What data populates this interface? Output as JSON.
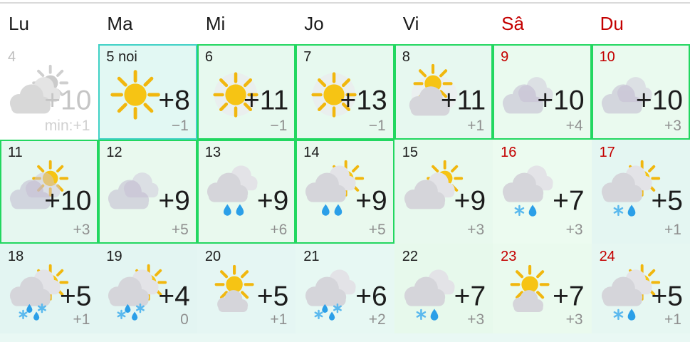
{
  "colors": {
    "page_bg": "#ffffff",
    "weekend_red": "#c40000",
    "text_dark": "#1c1c1c",
    "low_gray": "#8f8f8f",
    "past_gray": "#c5c5c5",
    "green_border": "#22d760",
    "teal_border": "#3fd1c5",
    "top_divider": "#dadada",
    "sun_yellow": "#f6c414",
    "rain_blue": "#2b9fe8",
    "snow_blue": "#5bb9ee"
  },
  "header": {
    "days": [
      {
        "label": "Lu",
        "weekend": false
      },
      {
        "label": "Ma",
        "weekend": false
      },
      {
        "label": "Mi",
        "weekend": false
      },
      {
        "label": "Jo",
        "weekend": false
      },
      {
        "label": "Vi",
        "weekend": false
      },
      {
        "label": "Sâ",
        "weekend": true
      },
      {
        "label": "Du",
        "weekend": true
      }
    ]
  },
  "calendar": {
    "rows": [
      {
        "cells": [
          {
            "label": "4",
            "weekend": false,
            "past": true,
            "high": "+10",
            "low": "min:+1",
            "bg": "#ffffff",
            "border": "none",
            "icon": {
              "name": "sun-behind-cloud-gray-icon",
              "sun": "peek",
              "cloud": "double",
              "tone": "gray",
              "precip": "none",
              "halo": false
            }
          },
          {
            "label": "5 noi",
            "weekend": false,
            "past": false,
            "high": "+8",
            "low": "−1",
            "bg": "#e2f8f3",
            "border": "teal",
            "icon": {
              "name": "clear-sun-icon",
              "sun": "full",
              "cloud": "none",
              "tone": "normal",
              "precip": "none",
              "halo": false
            }
          },
          {
            "label": "6",
            "weekend": false,
            "past": false,
            "high": "+11",
            "low": "−1",
            "bg": "#e7f9ef",
            "border": "green",
            "icon": {
              "name": "hazy-sun-icon",
              "sun": "halo",
              "cloud": "none",
              "tone": "normal",
              "precip": "none",
              "halo": false
            }
          },
          {
            "label": "7",
            "weekend": false,
            "past": false,
            "high": "+13",
            "low": "−1",
            "bg": "#e7f9ef",
            "border": "green",
            "icon": {
              "name": "hazy-sun-icon",
              "sun": "halo",
              "cloud": "none",
              "tone": "normal",
              "precip": "none",
              "halo": false
            }
          },
          {
            "label": "8",
            "weekend": false,
            "past": false,
            "high": "+11",
            "low": "+1",
            "bg": "#e7f8f0",
            "border": "green",
            "icon": {
              "name": "mostly-sunny-icon",
              "sun": "high",
              "cloud": "single",
              "tone": "normal",
              "precip": "none",
              "halo": true
            }
          },
          {
            "label": "9",
            "weekend": true,
            "past": false,
            "high": "+10",
            "low": "+4",
            "bg": "#eafaef",
            "border": "green",
            "icon": {
              "name": "overcast-icon",
              "sun": "none",
              "cloud": "double",
              "tone": "faded",
              "precip": "none",
              "halo": false
            }
          },
          {
            "label": "10",
            "weekend": true,
            "past": false,
            "high": "+10",
            "low": "+3",
            "bg": "#eafaef",
            "border": "green",
            "icon": {
              "name": "overcast-icon",
              "sun": "none",
              "cloud": "double",
              "tone": "faded",
              "precip": "none",
              "halo": false
            }
          }
        ]
      },
      {
        "cells": [
          {
            "label": "11",
            "weekend": false,
            "past": false,
            "high": "+10",
            "low": "+3",
            "bg": "#e6f7f0",
            "border": "green",
            "icon": {
              "name": "cloudy-with-sun-icon",
              "sun": "peek",
              "cloud": "double",
              "tone": "faded",
              "precip": "none",
              "halo": false
            }
          },
          {
            "label": "12",
            "weekend": false,
            "past": false,
            "high": "+9",
            "low": "+5",
            "bg": "#e9f9ee",
            "border": "green",
            "icon": {
              "name": "overcast-icon",
              "sun": "none",
              "cloud": "double",
              "tone": "faded",
              "precip": "none",
              "halo": false
            }
          },
          {
            "label": "13",
            "weekend": false,
            "past": false,
            "high": "+9",
            "low": "+6",
            "bg": "#e9f9ee",
            "border": "green",
            "icon": {
              "name": "rain-icon",
              "sun": "none",
              "cloud": "double",
              "tone": "normal",
              "precip": "rain",
              "halo": false
            }
          },
          {
            "label": "14",
            "weekend": false,
            "past": false,
            "high": "+9",
            "low": "+5",
            "bg": "#e9f9ee",
            "border": "green",
            "icon": {
              "name": "sun-rain-icon",
              "sun": "peek",
              "cloud": "double",
              "tone": "normal",
              "precip": "rain",
              "halo": false
            }
          },
          {
            "label": "15",
            "weekend": false,
            "past": false,
            "high": "+9",
            "low": "+3",
            "bg": "#e8f9ee",
            "border": "none",
            "icon": {
              "name": "partly-sunny-icon",
              "sun": "peek",
              "cloud": "double",
              "tone": "normal",
              "precip": "none",
              "halo": false
            }
          },
          {
            "label": "16",
            "weekend": true,
            "past": false,
            "high": "+7",
            "low": "+3",
            "bg": "#ecfbf0",
            "border": "none",
            "icon": {
              "name": "sleet-icon",
              "sun": "none",
              "cloud": "double",
              "tone": "normal",
              "precip": "sleet",
              "halo": false
            }
          },
          {
            "label": "17",
            "weekend": true,
            "past": false,
            "high": "+5",
            "low": "+1",
            "bg": "#e4f6f2",
            "border": "none",
            "icon": {
              "name": "sun-sleet-icon",
              "sun": "peek",
              "cloud": "double",
              "tone": "normal",
              "precip": "sleet",
              "halo": false
            }
          }
        ]
      },
      {
        "cells": [
          {
            "label": "18",
            "weekend": false,
            "past": false,
            "high": "+5",
            "low": "+1",
            "bg": "#e3f5f2",
            "border": "none",
            "icon": {
              "name": "sun-snow-rain-icon",
              "sun": "peek",
              "cloud": "double",
              "tone": "normal",
              "precip": "mix",
              "halo": false
            }
          },
          {
            "label": "19",
            "weekend": false,
            "past": false,
            "high": "+4",
            "low": "0",
            "bg": "#e3f5f2",
            "border": "none",
            "icon": {
              "name": "sun-snow-rain-icon",
              "sun": "peek",
              "cloud": "double",
              "tone": "normal",
              "precip": "mix",
              "halo": false
            }
          },
          {
            "label": "20",
            "weekend": false,
            "past": false,
            "high": "+5",
            "low": "+1",
            "bg": "#e5f6f3",
            "border": "none",
            "icon": {
              "name": "sun-over-cloud-icon",
              "sun": "high",
              "cloud": "single",
              "tone": "normal",
              "precip": "none",
              "halo": false
            }
          },
          {
            "label": "21",
            "weekend": false,
            "past": false,
            "high": "+6",
            "low": "+2",
            "bg": "#e7f8f3",
            "border": "none",
            "icon": {
              "name": "snow-rain-icon",
              "sun": "none",
              "cloud": "double",
              "tone": "normal",
              "precip": "mix",
              "halo": false
            }
          },
          {
            "label": "22",
            "weekend": false,
            "past": false,
            "high": "+7",
            "low": "+3",
            "bg": "#e7f9ec",
            "border": "none",
            "icon": {
              "name": "sleet-icon",
              "sun": "none",
              "cloud": "double",
              "tone": "normal",
              "precip": "sleet",
              "halo": false
            }
          },
          {
            "label": "23",
            "weekend": true,
            "past": false,
            "high": "+7",
            "low": "+3",
            "bg": "#eafaee",
            "border": "none",
            "icon": {
              "name": "sun-over-cloud-icon",
              "sun": "high",
              "cloud": "single",
              "tone": "normal",
              "precip": "none",
              "halo": false
            }
          },
          {
            "label": "24",
            "weekend": true,
            "past": false,
            "high": "+5",
            "low": "+1",
            "bg": "#e6f7f2",
            "border": "none",
            "icon": {
              "name": "sun-sleet-icon",
              "sun": "peek",
              "cloud": "double",
              "tone": "normal",
              "precip": "sleet",
              "halo": false
            }
          }
        ]
      }
    ],
    "next_row_stub": {
      "bg": "#e9f8f4",
      "count": 7
    }
  }
}
